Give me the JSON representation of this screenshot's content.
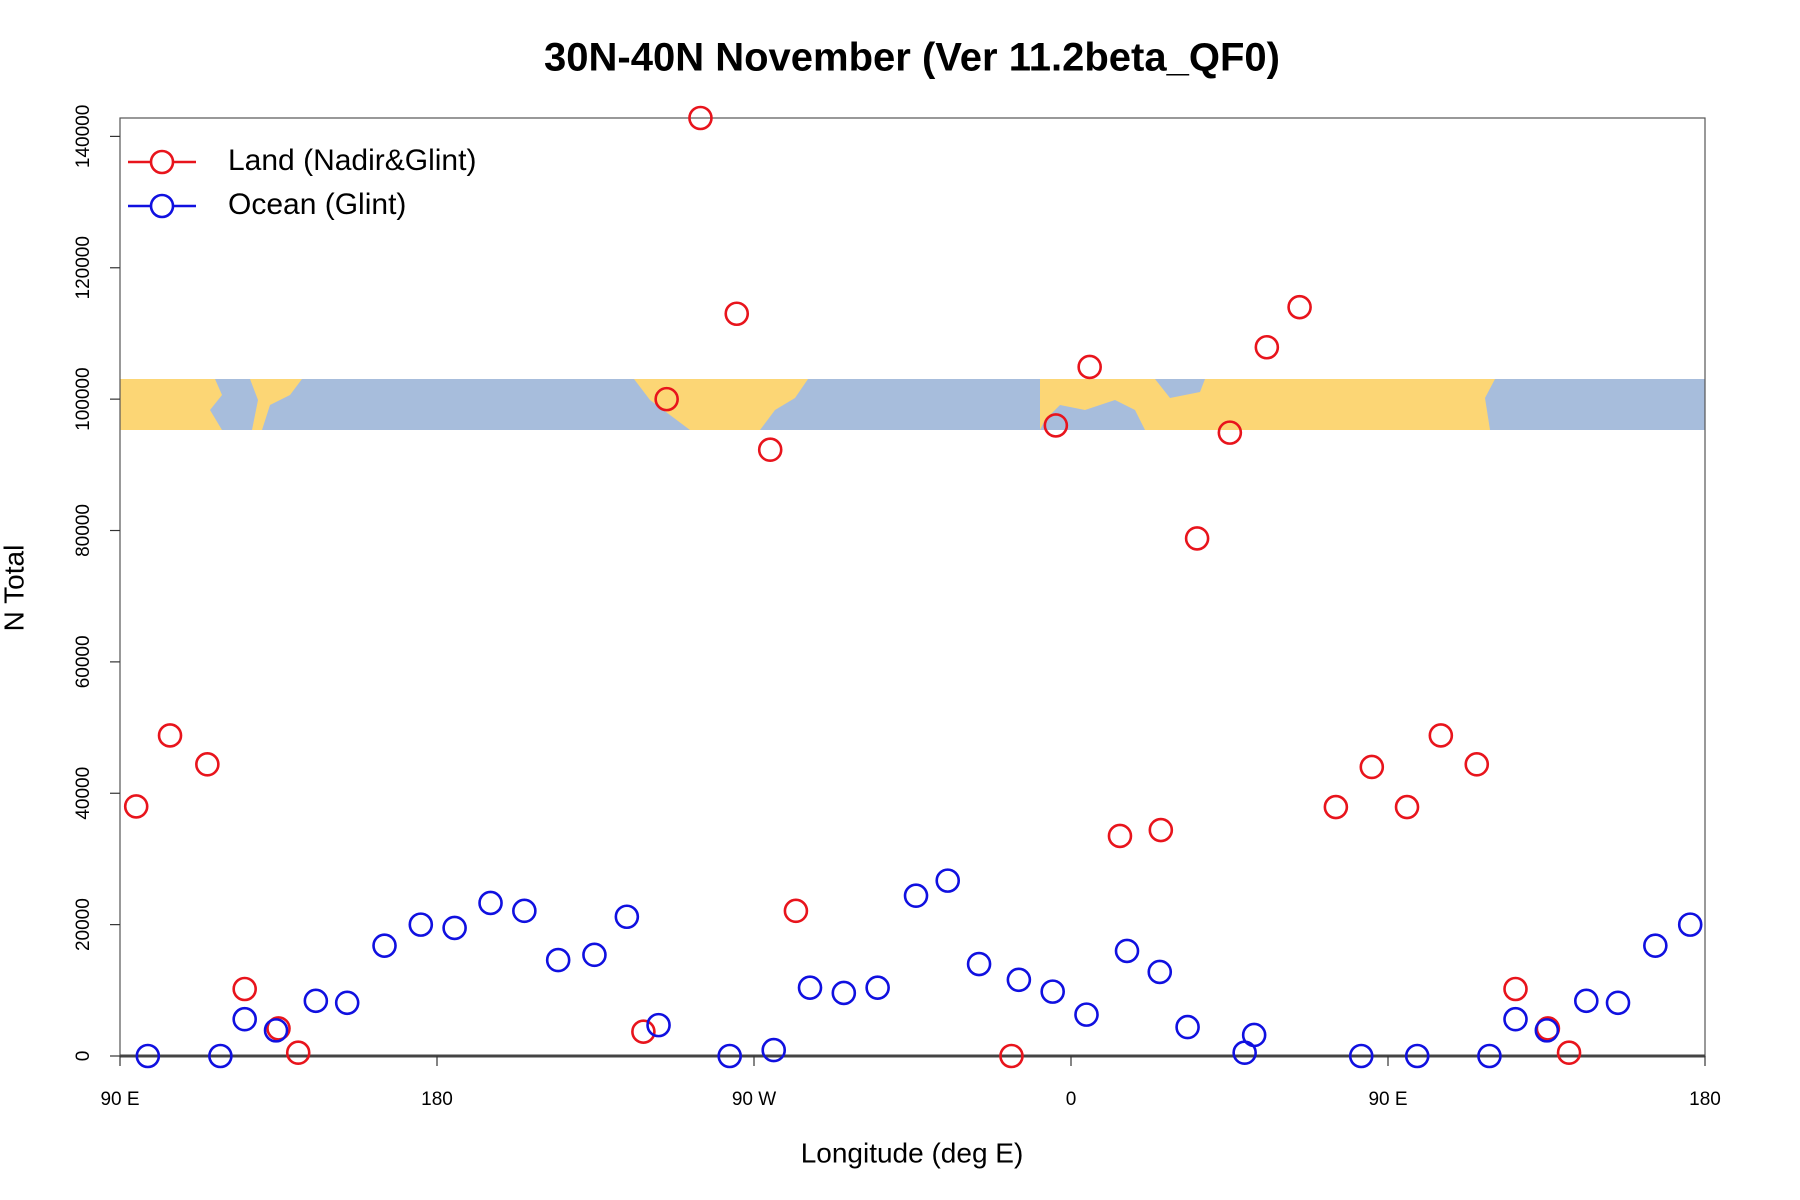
{
  "chart_data": {
    "type": "scatter",
    "title": "30N-40N November (Ver 11.2beta_QF0)",
    "xlabel": "Longitude (deg E)",
    "ylabel": "N Total",
    "xlim": [
      90,
      540
    ],
    "ylim": [
      0,
      142800
    ],
    "xticks": [
      {
        "value": 90,
        "label": "90 E"
      },
      180,
      {
        "value": 270,
        "label": "90 W"
      },
      {
        "value": 360,
        "label": "0"
      },
      {
        "value": 450,
        "label": "90 E"
      },
      {
        "value": 540,
        "label": "180"
      }
    ],
    "yticks": [
      0,
      20000,
      40000,
      60000,
      80000,
      100000,
      120000,
      140000
    ],
    "legend": "topleft",
    "series": [
      {
        "name": "Land (Nadir&Glint)",
        "color": "#e8141c",
        "x": [
          94.6,
          104.2,
          114.8,
          125.4,
          135,
          140.6,
          238.6,
          245.2,
          254.8,
          265.1,
          274.6,
          281.9,
          343.1,
          355.7,
          365.3,
          373.9,
          385.5,
          395.8,
          405.1,
          415.6,
          424.9,
          435.2,
          445.4,
          455.4,
          465,
          475.2,
          486.2,
          495.4,
          501.4
        ],
        "values": [
          38000,
          48800,
          44400,
          10200,
          4200,
          500,
          3700,
          100000,
          142800,
          113000,
          92300,
          22100,
          0,
          96000,
          104900,
          33500,
          34400,
          78800,
          94900,
          107900,
          114000,
          37900,
          44000,
          37900,
          48800,
          44400,
          10200,
          4200,
          500
        ]
      },
      {
        "name": "Ocean (Glint)",
        "color": "#1010e0",
        "x": [
          97.9,
          118.5,
          125.4,
          134.3,
          145.6,
          154.5,
          165.1,
          175.4,
          185,
          195.2,
          204.8,
          214.4,
          224.7,
          233.9,
          242.9,
          263.1,
          275.6,
          285.9,
          295.5,
          305.1,
          316,
          325,
          333.9,
          345.2,
          354.8,
          364.4,
          375.9,
          385.2,
          393.1,
          409.3,
          412,
          442.4,
          458.3,
          478.8,
          486.2,
          495.1,
          506.3,
          515.3,
          525.9,
          535.8
        ],
        "values": [
          0,
          0,
          5600,
          3900,
          8400,
          8100,
          16800,
          20000,
          19500,
          23300,
          22100,
          14600,
          15400,
          21200,
          4700,
          0,
          900,
          10400,
          9600,
          10400,
          24400,
          26700,
          14000,
          11600,
          9800,
          6300,
          16000,
          12800,
          4400,
          500,
          3200,
          0,
          0,
          0,
          5600,
          3900,
          8400,
          8100,
          16800,
          20000
        ]
      }
    ]
  }
}
